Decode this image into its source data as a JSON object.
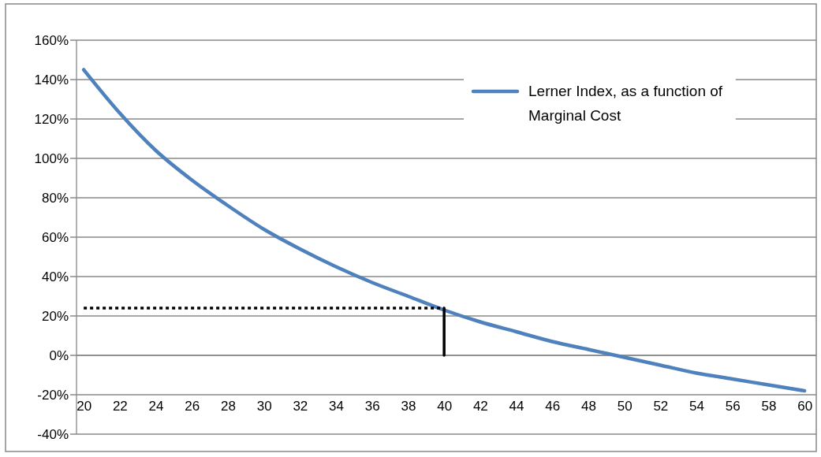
{
  "chart_data": {
    "type": "line",
    "xlim": [
      19.6,
      60.65
    ],
    "xticks": [
      20,
      22,
      24,
      26,
      28,
      30,
      32,
      34,
      36,
      38,
      40,
      42,
      44,
      46,
      48,
      50,
      52,
      54,
      56,
      58,
      60
    ],
    "ylim": [
      -40,
      160
    ],
    "yticks": [
      {
        "value": -40,
        "label": "-40%"
      },
      {
        "value": -20,
        "label": "-20%"
      },
      {
        "value": 0,
        "label": "0%"
      },
      {
        "value": 20,
        "label": "20%"
      },
      {
        "value": 40,
        "label": "40%"
      },
      {
        "value": 60,
        "label": "60%"
      },
      {
        "value": 80,
        "label": "80%"
      },
      {
        "value": 100,
        "label": "100%"
      },
      {
        "value": 120,
        "label": "120%"
      },
      {
        "value": 140,
        "label": "140%"
      },
      {
        "value": 160,
        "label": "160%"
      }
    ],
    "grid": "y",
    "legend": "top right",
    "marker": "none",
    "series": [
      {
        "name": "Lerner Index, as a function of Marginal Cost",
        "color": "#4f81bd",
        "x": [
          20,
          22,
          24,
          26,
          28,
          30,
          32,
          34,
          36,
          38,
          40,
          42,
          44,
          46,
          48,
          50,
          52,
          54,
          56,
          58,
          60
        ],
        "values": [
          145,
          123,
          104,
          89,
          76,
          64,
          54,
          45,
          37,
          30,
          23,
          17,
          12,
          7,
          3,
          -1,
          -5,
          -9,
          -12,
          -15,
          -18
        ]
      },
      {
        "color": "#000000",
        "line_style": "dotted",
        "x": [
          20,
          40
        ],
        "values": [
          24,
          24
        ]
      },
      {
        "color": "#000000",
        "line_style": "solid",
        "x": [
          40,
          40
        ],
        "values": [
          0,
          24
        ]
      }
    ]
  }
}
